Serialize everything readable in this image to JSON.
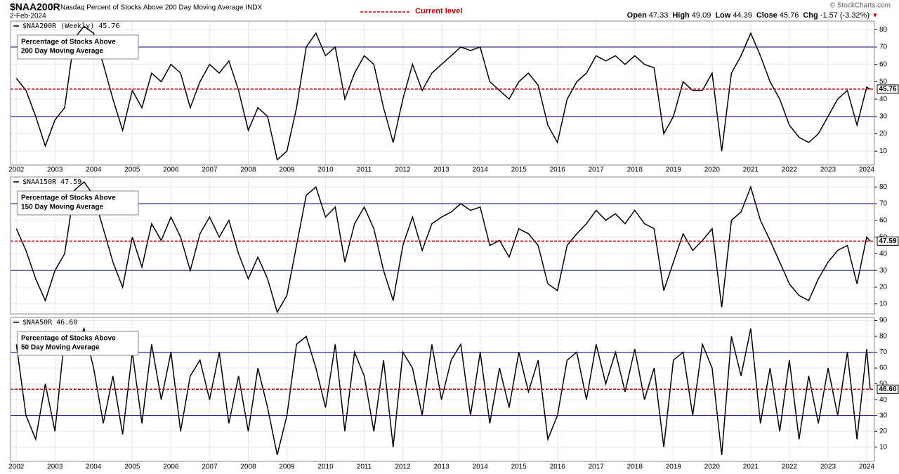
{
  "header": {
    "symbol": "$NAA200R",
    "description": "Nasdaq Percent of Stocks Above 200 Day Moving Average INDX",
    "date": "2-Feb-2024",
    "current_level_legend": "Current level",
    "copyright": "© StockCharts.com",
    "quote": [
      {
        "label": "Open",
        "value": 47.33
      },
      {
        "label": "High",
        "value": 49.09
      },
      {
        "label": "Low",
        "value": 44.39
      },
      {
        "label": "Close",
        "value": 45.76
      },
      {
        "label": "Chg",
        "value": -1.57
      }
    ],
    "chg_pct": "(-3.32%)"
  },
  "chart_data": [
    {
      "type": "line",
      "annotation": [
        "Percentage of Stocks Above",
        "200 Day Moving Average"
      ],
      "current": 45.76,
      "current_color": "#c00000",
      "reference_lines": [
        70,
        30
      ],
      "reference_color": "#000080",
      "grid": true,
      "x": [
        2002,
        2002.25,
        2002.5,
        2002.75,
        2003,
        2003.25,
        2003.5,
        2003.75,
        2004,
        2004.25,
        2004.5,
        2004.75,
        2005,
        2005.25,
        2005.5,
        2005.75,
        2006,
        2006.25,
        2006.5,
        2006.75,
        2007,
        2007.25,
        2007.5,
        2007.75,
        2008,
        2008.25,
        2008.5,
        2008.75,
        2009,
        2009.25,
        2009.5,
        2009.75,
        2010,
        2010.25,
        2010.5,
        2010.75,
        2011,
        2011.25,
        2011.5,
        2011.75,
        2012,
        2012.25,
        2012.5,
        2012.75,
        2013,
        2013.25,
        2013.5,
        2013.75,
        2014,
        2014.25,
        2014.5,
        2014.75,
        2015,
        2015.25,
        2015.5,
        2015.75,
        2016,
        2016.25,
        2016.5,
        2016.75,
        2017,
        2017.25,
        2017.5,
        2017.75,
        2018,
        2018.25,
        2018.5,
        2018.75,
        2019,
        2019.25,
        2019.5,
        2019.75,
        2020,
        2020.25,
        2020.5,
        2020.75,
        2021,
        2021.25,
        2021.5,
        2021.75,
        2022,
        2022.25,
        2022.5,
        2022.75,
        2023,
        2023.25,
        2023.5,
        2023.75,
        2024,
        2024.09
      ],
      "series": [
        {
          "name": "$NAA200R (Weekly)",
          "color": "#000000",
          "values": [
            52,
            45,
            30,
            13,
            28,
            35,
            75,
            82,
            78,
            60,
            40,
            22,
            45,
            35,
            55,
            50,
            60,
            55,
            35,
            50,
            60,
            55,
            62,
            45,
            22,
            35,
            30,
            5,
            10,
            35,
            70,
            78,
            65,
            70,
            40,
            55,
            65,
            60,
            35,
            15,
            40,
            60,
            45,
            55,
            60,
            65,
            70,
            68,
            70,
            50,
            45,
            40,
            50,
            55,
            48,
            25,
            15,
            40,
            50,
            55,
            65,
            62,
            65,
            60,
            65,
            60,
            58,
            20,
            30,
            50,
            45,
            45,
            55,
            10,
            55,
            65,
            78,
            65,
            50,
            40,
            25,
            18,
            15,
            20,
            30,
            40,
            45,
            25,
            47,
            45.76
          ]
        }
      ],
      "xlim": [
        2001.85,
        2024.2
      ],
      "xticks": [
        2002,
        2003,
        2004,
        2005,
        2006,
        2007,
        2008,
        2009,
        2010,
        2011,
        2012,
        2013,
        2014,
        2015,
        2016,
        2017,
        2018,
        2019,
        2020,
        2021,
        2022,
        2023,
        2024
      ],
      "ylim": [
        2,
        85
      ],
      "yticks": [
        10,
        20,
        30,
        40,
        50,
        60,
        70,
        80
      ]
    },
    {
      "type": "line",
      "annotation": [
        "Percentage of Stocks Above",
        "150 Day Moving Average"
      ],
      "current": 47.59,
      "current_color": "#c00000",
      "reference_lines": [
        70,
        30
      ],
      "reference_color": "#000080",
      "grid": true,
      "x": [
        2002,
        2002.25,
        2002.5,
        2002.75,
        2003,
        2003.25,
        2003.5,
        2003.75,
        2004,
        2004.25,
        2004.5,
        2004.75,
        2005,
        2005.25,
        2005.5,
        2005.75,
        2006,
        2006.25,
        2006.5,
        2006.75,
        2007,
        2007.25,
        2007.5,
        2007.75,
        2008,
        2008.25,
        2008.5,
        2008.75,
        2009,
        2009.25,
        2009.5,
        2009.75,
        2010,
        2010.25,
        2010.5,
        2010.75,
        2011,
        2011.25,
        2011.5,
        2011.75,
        2012,
        2012.25,
        2012.5,
        2012.75,
        2013,
        2013.25,
        2013.5,
        2013.75,
        2014,
        2014.25,
        2014.5,
        2014.75,
        2015,
        2015.25,
        2015.5,
        2015.75,
        2016,
        2016.25,
        2016.5,
        2016.75,
        2017,
        2017.25,
        2017.5,
        2017.75,
        2018,
        2018.25,
        2018.5,
        2018.75,
        2019,
        2019.25,
        2019.5,
        2019.75,
        2020,
        2020.25,
        2020.5,
        2020.75,
        2021,
        2021.25,
        2021.5,
        2021.75,
        2022,
        2022.25,
        2022.5,
        2022.75,
        2023,
        2023.25,
        2023.5,
        2023.75,
        2024,
        2024.09
      ],
      "series": [
        {
          "name": "$NAA150R",
          "color": "#000000",
          "values": [
            55,
            42,
            25,
            12,
            30,
            40,
            78,
            83,
            75,
            55,
            35,
            20,
            50,
            32,
            58,
            48,
            62,
            50,
            30,
            52,
            62,
            50,
            60,
            40,
            25,
            38,
            25,
            5,
            15,
            45,
            75,
            80,
            62,
            68,
            35,
            58,
            68,
            55,
            30,
            12,
            45,
            62,
            42,
            58,
            62,
            65,
            70,
            66,
            68,
            45,
            48,
            38,
            55,
            52,
            45,
            22,
            18,
            45,
            52,
            58,
            66,
            60,
            64,
            58,
            66,
            58,
            55,
            18,
            35,
            52,
            42,
            48,
            55,
            8,
            60,
            65,
            80,
            60,
            48,
            35,
            22,
            15,
            12,
            25,
            35,
            42,
            45,
            22,
            50,
            47.59
          ]
        }
      ],
      "xlim": [
        2001.85,
        2024.2
      ],
      "xticks": [
        2002,
        2003,
        2004,
        2005,
        2006,
        2007,
        2008,
        2009,
        2010,
        2011,
        2012,
        2013,
        2014,
        2015,
        2016,
        2017,
        2018,
        2019,
        2020,
        2021,
        2022,
        2023,
        2024
      ],
      "ylim": [
        4,
        86
      ],
      "yticks": [
        10,
        20,
        30,
        40,
        50,
        60,
        70,
        80
      ]
    },
    {
      "type": "line",
      "annotation": [
        "Percentage of Stocks Above",
        "50 Day Moving Average"
      ],
      "current": 46.6,
      "current_label": "46.60",
      "current_color": "#c00000",
      "reference_lines": [
        70,
        30
      ],
      "reference_color": "#000080",
      "grid": true,
      "x": [
        2002,
        2002.25,
        2002.5,
        2002.75,
        2003,
        2003.25,
        2003.5,
        2003.75,
        2004,
        2004.25,
        2004.5,
        2004.75,
        2005,
        2005.25,
        2005.5,
        2005.75,
        2006,
        2006.25,
        2006.5,
        2006.75,
        2007,
        2007.25,
        2007.5,
        2007.75,
        2008,
        2008.25,
        2008.5,
        2008.75,
        2009,
        2009.25,
        2009.5,
        2009.75,
        2010,
        2010.25,
        2010.5,
        2010.75,
        2011,
        2011.25,
        2011.5,
        2011.75,
        2012,
        2012.25,
        2012.5,
        2012.75,
        2013,
        2013.25,
        2013.5,
        2013.75,
        2014,
        2014.25,
        2014.5,
        2014.75,
        2015,
        2015.25,
        2015.5,
        2015.75,
        2016,
        2016.25,
        2016.5,
        2016.75,
        2017,
        2017.25,
        2017.5,
        2017.75,
        2018,
        2018.25,
        2018.5,
        2018.75,
        2019,
        2019.25,
        2019.5,
        2019.75,
        2020,
        2020.25,
        2020.5,
        2020.75,
        2021,
        2021.25,
        2021.5,
        2021.75,
        2022,
        2022.25,
        2022.5,
        2022.75,
        2023,
        2023.25,
        2023.5,
        2023.75,
        2024,
        2024.09
      ],
      "series": [
        {
          "name": "$NAA50R",
          "color": "#000000",
          "values": [
            75,
            30,
            15,
            50,
            20,
            80,
            70,
            85,
            60,
            25,
            55,
            18,
            70,
            25,
            75,
            40,
            70,
            20,
            55,
            65,
            40,
            70,
            25,
            55,
            20,
            60,
            35,
            5,
            30,
            75,
            80,
            60,
            35,
            75,
            20,
            70,
            55,
            20,
            65,
            10,
            70,
            60,
            30,
            75,
            40,
            65,
            75,
            30,
            70,
            25,
            60,
            35,
            70,
            45,
            65,
            15,
            30,
            65,
            70,
            40,
            75,
            50,
            70,
            45,
            72,
            40,
            60,
            10,
            65,
            70,
            30,
            75,
            60,
            5,
            80,
            55,
            85,
            25,
            60,
            20,
            65,
            15,
            55,
            25,
            60,
            30,
            70,
            15,
            72,
            46.6
          ]
        }
      ],
      "xlim": [
        2001.85,
        2024.2
      ],
      "xticks": [
        2002,
        2003,
        2004,
        2005,
        2006,
        2007,
        2008,
        2009,
        2010,
        2011,
        2012,
        2013,
        2014,
        2015,
        2016,
        2017,
        2018,
        2019,
        2020,
        2021,
        2022,
        2023,
        2024
      ],
      "ylim": [
        1,
        92
      ],
      "yticks": [
        10,
        20,
        30,
        40,
        50,
        60,
        70,
        80,
        90
      ]
    }
  ]
}
